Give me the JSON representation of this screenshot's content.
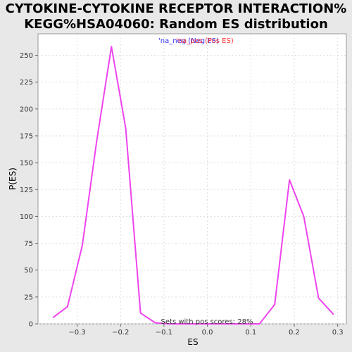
{
  "chart_data": {
    "type": "line",
    "title_line1": "CYTOKINE-CYTOKINE RECEPTOR INTERACTION%",
    "title_line2": "KEGG%HSA04060: Random ES distribution",
    "xlabel": "ES",
    "ylabel": "P(ES)",
    "xlim": [
      -0.39,
      0.32
    ],
    "ylim": [
      0,
      270
    ],
    "x_ticks": [
      -0.3,
      -0.2,
      -0.1,
      0.0,
      0.1,
      0.2,
      0.3
    ],
    "x_tick_labels": [
      "−0.3",
      "−0.2",
      "−0.1",
      "0.0",
      "0.1",
      "0.2",
      "0.3"
    ],
    "y_ticks": [
      0,
      25,
      50,
      75,
      100,
      125,
      150,
      175,
      200,
      225,
      250
    ],
    "y_tick_labels": [
      "0",
      "25",
      "50",
      "75",
      "100",
      "125",
      "150",
      "175",
      "200",
      "225",
      "250"
    ],
    "grid": true,
    "legend": {
      "na_neg": {
        "label": "'na_neg (Neg ES)",
        "color": "#3333ff"
      },
      "na_pos": {
        "label": "'na_pos (Pos ES)",
        "color": "#ff3333"
      },
      "placement": "top-center"
    },
    "series": [
      {
        "name": "Random ES distribution",
        "color": "#ee44ee",
        "x": [
          -0.355,
          -0.322,
          -0.288,
          -0.255,
          -0.221,
          -0.188,
          -0.154,
          -0.12,
          -0.087,
          -0.053,
          -0.02,
          0.014,
          0.047,
          0.081,
          0.12,
          0.155,
          0.189,
          0.222,
          0.256,
          0.29
        ],
        "y": [
          6,
          16,
          73,
          170,
          258,
          182,
          10,
          1,
          0,
          0,
          0,
          0,
          0,
          0,
          0,
          18,
          134,
          100,
          24,
          9
        ]
      }
    ],
    "annotation": "Sets with pos scores: 28%"
  }
}
